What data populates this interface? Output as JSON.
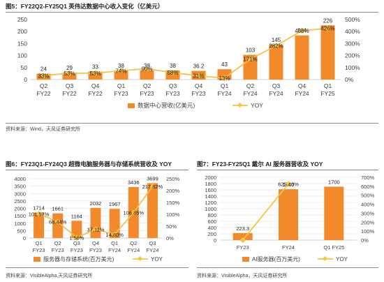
{
  "colors": {
    "bar": "#F2892B",
    "yoy": "#F6C342",
    "grid": "#d9d9d9",
    "text": "#404040"
  },
  "figures": {
    "fig5": {
      "title": "图5：FY22Q2-FY25Q1 英伟达数据中心收入变化（亿美元）",
      "source": "资料来源：Wind，天风证券研究所"
    },
    "fig6": {
      "title": "图6：FY23Q1-FY24Q3 超微电脑服务器与存储系统营收及 YOY",
      "source": "资料来源：VisibleAlpha,天风证券研究所"
    },
    "fig7": {
      "title": "图7：FY23-FY25Q1 戴尔 AI 服务器营收及 YOY",
      "source": "资料来源：VisibleAlpha，天风证券研究所"
    }
  },
  "chart_data": [
    {
      "id": "fig5",
      "type": "bar",
      "categories": [
        "Q2\nFY22",
        "Q3\nFY22",
        "Q4\nFY22",
        "Q1\nFY23",
        "Q2\nFY23",
        "Q3\nFY23",
        "Q4\nFY23",
        "Q1\nFY24",
        "Q2\nFY24",
        "Q3\nFY24",
        "Q4\nFY24",
        "Q1\nFY25"
      ],
      "series": [
        {
          "name": "数据中心营收(亿美元)",
          "type": "bar",
          "axis": "left",
          "values": [
            24,
            29,
            33,
            38,
            38,
            38,
            36.2,
            43,
            103,
            145,
            184,
            226
          ],
          "labels": [
            "24",
            "29",
            "33",
            "38",
            "38",
            "38",
            "36.2",
            "43",
            "103",
            "145",
            "184",
            "226"
          ]
        },
        {
          "name": "YOY",
          "type": "line",
          "axis": "right",
          "values": [
            33,
            53,
            53,
            74,
            90,
            58,
            31,
            13,
            171,
            282,
            408,
            426
          ],
          "labels": [
            "33%",
            "53%",
            "53%",
            "74%",
            "90%",
            "58%",
            "31%",
            "13%",
            "171%",
            "282%",
            "408%",
            "426%"
          ]
        }
      ],
      "ylim_left": [
        0,
        250
      ],
      "yticks_left": [
        0,
        50,
        100,
        150,
        200,
        250
      ],
      "ylim_right": [
        0,
        500
      ],
      "yticks_right": [
        "0%",
        "100%",
        "200%",
        "300%",
        "400%",
        "500%"
      ],
      "legend": "bottom",
      "grid": false
    },
    {
      "id": "fig6",
      "type": "bar",
      "categories": [
        "Q1\nFY23",
        "Q2\nFY23",
        "Q3\nFY23",
        "Q4\nFY23",
        "Q1\nFY24",
        "Q2\nFY24",
        "Q3\nFY24"
      ],
      "series": [
        {
          "name": "服务器与存储系统(百万美元)",
          "type": "bar",
          "axis": "left",
          "values": [
            1714,
            1661,
            1164,
            2032,
            1967,
            3436,
            3699
          ],
          "labels": [
            "1714",
            "1661",
            "1164",
            "2032",
            "1967",
            "3436",
            "3699"
          ]
        },
        {
          "name": "YOY",
          "type": "line",
          "axis": "right",
          "values": [
            101.57,
            68.44,
            1.56,
            37.11,
            14.8,
            106.85,
            217.82
          ],
          "labels": [
            "101.57%",
            "68.44%",
            "1.56%",
            "37.11%",
            "14.80%",
            "106.85%",
            "217.82%"
          ]
        }
      ],
      "ylim_left": [
        0,
        4000
      ],
      "yticks_left": [
        0,
        500,
        1000,
        1500,
        2000,
        2500,
        3000,
        3500,
        4000
      ],
      "ylim_right": [
        0,
        250
      ],
      "yticks_right": [
        "0%",
        "50%",
        "100%",
        "150%",
        "200%",
        "250%"
      ],
      "legend": "bottom",
      "grid": true
    },
    {
      "id": "fig7",
      "type": "bar",
      "categories": [
        "FY23",
        "FY24",
        "Q1 FY25"
      ],
      "series": [
        {
          "name": "AI服务器(百万美元)",
          "type": "bar",
          "axis": "left",
          "values": [
            223.3,
            1620,
            1700
          ],
          "labels": [
            "223.3",
            "1620",
            "1700"
          ]
        },
        {
          "name": "YOY",
          "type": "line",
          "axis": "right",
          "values": [
            0,
            625.48,
            null
          ],
          "labels": [
            "",
            "625.48%",
            ""
          ]
        }
      ],
      "ylim_left": [
        0,
        2000
      ],
      "yticks_left": [
        0,
        200,
        400,
        600,
        800,
        1000,
        1200,
        1400,
        1600,
        1800,
        2000
      ],
      "ylim_right": [
        0,
        700
      ],
      "yticks_right": [
        "0%",
        "100%",
        "200%",
        "300%",
        "400%",
        "500%",
        "600%",
        "700%"
      ],
      "legend": "bottom",
      "grid": true
    }
  ]
}
